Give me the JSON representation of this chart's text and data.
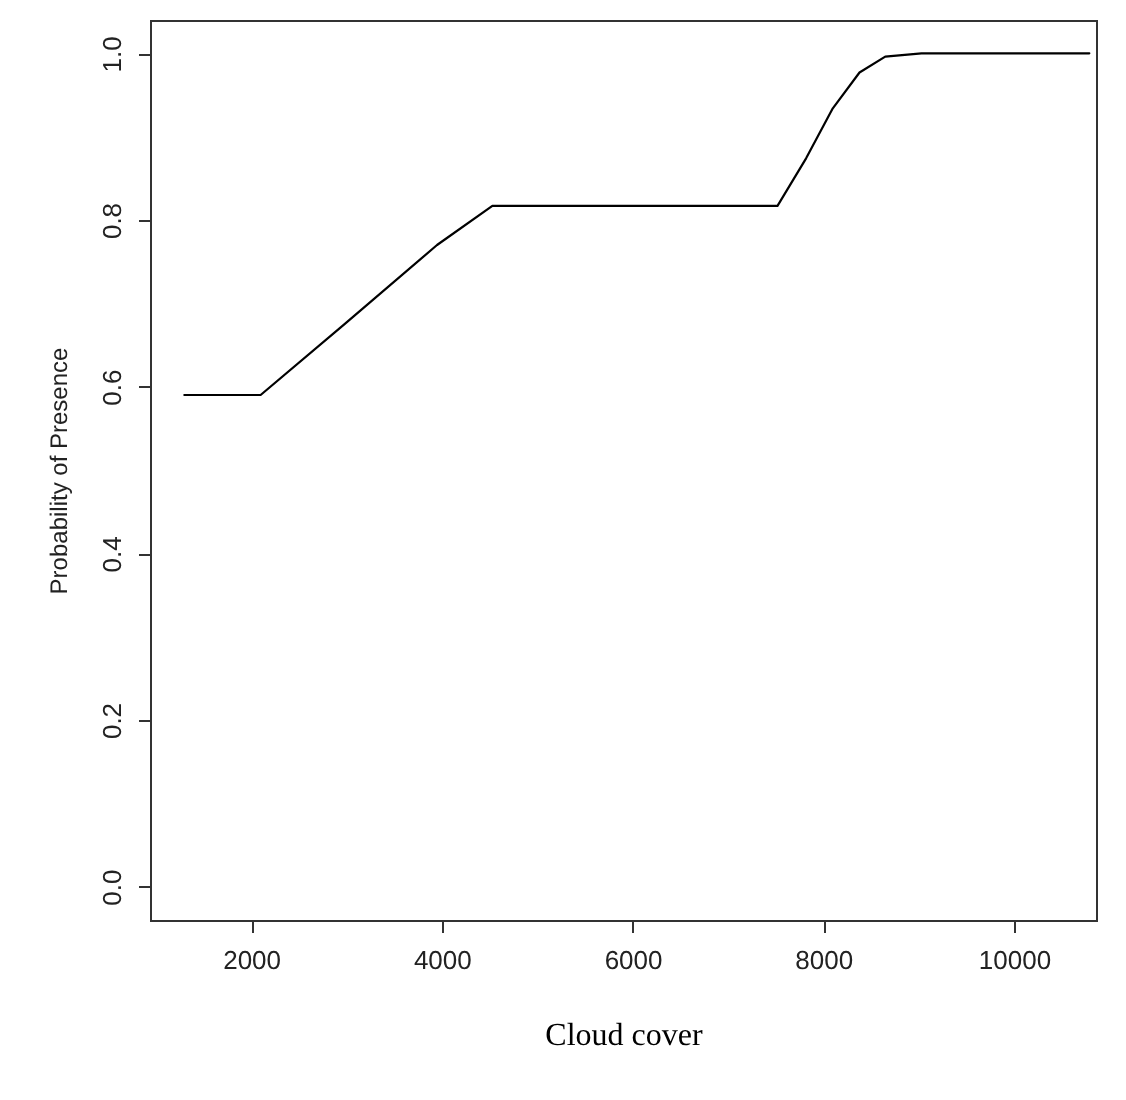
{
  "chart_data": {
    "type": "line",
    "xlabel": "Cloud cover",
    "ylabel": "Probability of  Presence",
    "x": [
      1300,
      2100,
      2980,
      3950,
      4530,
      7520,
      7820,
      8100,
      8380,
      8650,
      9030,
      10790
    ],
    "series": [
      {
        "color": "#000000",
        "values": [
          0.59,
          0.59,
          0.675,
          0.77,
          0.817,
          0.817,
          0.874,
          0.934,
          0.977,
          0.996,
          1.0,
          1.0
        ]
      }
    ],
    "xlim": [
      940,
      10860
    ],
    "xticks": [
      2000,
      4000,
      6000,
      8000,
      10000
    ],
    "ylim": [
      -0.04,
      1.04
    ],
    "yticks": [
      {
        "value": 0,
        "label": "0.0"
      },
      {
        "value": 0.2,
        "label": "0.2"
      },
      {
        "value": 0.4,
        "label": "0.4"
      },
      {
        "value": 0.6,
        "label": "0.6"
      },
      {
        "value": 0.8,
        "label": "0.8"
      },
      {
        "value": 1,
        "label": "1.0"
      }
    ],
    "grid": false,
    "marker": "none",
    "line_style": "solid"
  }
}
